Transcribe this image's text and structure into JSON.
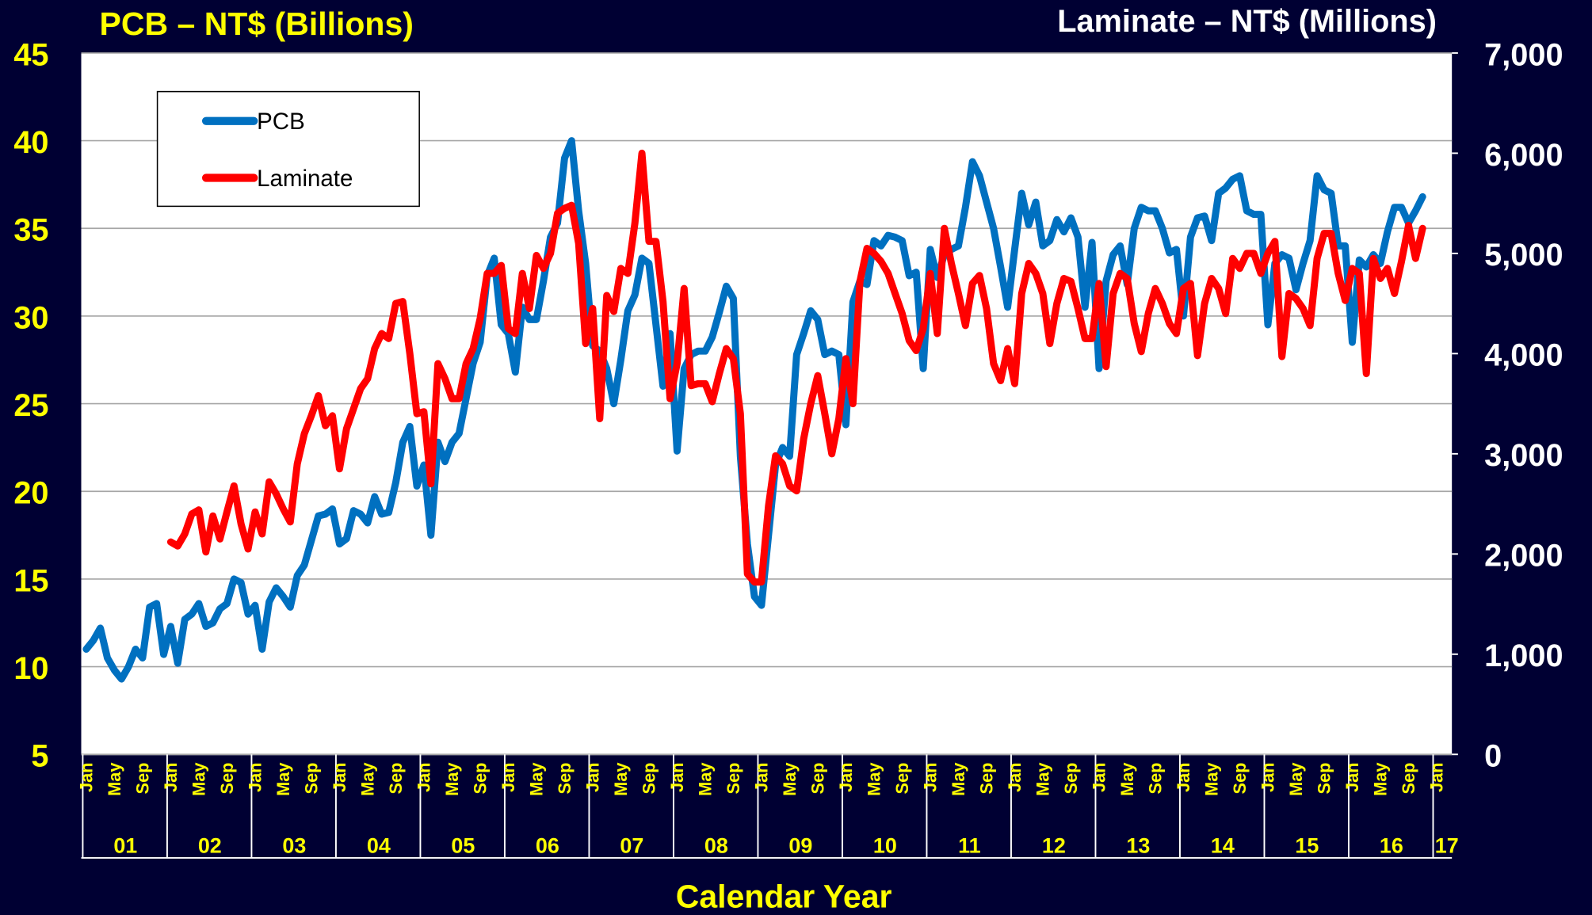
{
  "chart_data": {
    "type": "line",
    "title": "PCB – NT$ (Billions)",
    "title_right": "Laminate – NT$ (Millions)",
    "xlabel": "Calendar Year",
    "categories": [
      "Jan",
      null,
      null,
      null,
      "May",
      null,
      null,
      null,
      "Sep",
      null,
      null,
      null,
      "Jan",
      null,
      null,
      null,
      "May",
      null,
      null,
      null,
      "Sep",
      null,
      null,
      null,
      "Jan",
      null,
      null,
      null,
      "May",
      null,
      null,
      null,
      "Sep",
      null,
      null,
      null,
      "Jan",
      null,
      null,
      null,
      "May",
      null,
      null,
      null,
      "Sep",
      null,
      null,
      null,
      "Jan",
      null,
      null,
      null,
      "May",
      null,
      null,
      null,
      "Sep",
      null,
      null,
      null,
      "Jan",
      null,
      null,
      null,
      "May",
      null,
      null,
      null,
      "Sep",
      null,
      null,
      null,
      "Jan",
      null,
      null,
      null,
      "May",
      null,
      null,
      null,
      "Sep",
      null,
      null,
      null,
      "Jan",
      null,
      null,
      null,
      "May",
      null,
      null,
      null,
      "Sep",
      null,
      null,
      null,
      "Jan",
      null,
      null,
      null,
      "May",
      null,
      null,
      null,
      "Sep",
      null,
      null,
      null,
      "Jan",
      null,
      null,
      null,
      "May",
      null,
      null,
      null,
      "Sep",
      null,
      null,
      null,
      "Jan",
      null,
      null,
      null,
      "May",
      null,
      null,
      null,
      "Sep",
      null,
      null,
      null,
      "Jan",
      null,
      null,
      null,
      "May",
      null,
      null,
      null,
      "Sep",
      null,
      null,
      null,
      "Jan",
      null,
      null,
      null,
      "May",
      null,
      null,
      null,
      "Sep",
      null,
      null,
      null,
      "Jan",
      null,
      null,
      null,
      "May",
      null,
      null,
      null,
      "Sep",
      null,
      null,
      null,
      "Jan",
      null,
      null,
      null,
      "May",
      null,
      null,
      null,
      "Sep",
      null,
      null,
      null,
      "Jan",
      null,
      null,
      null,
      "May",
      null,
      null,
      null,
      "Sep",
      null,
      null,
      null,
      "Jan"
    ],
    "year_labels": [
      "01",
      "02",
      "03",
      "04",
      "05",
      "06",
      "07",
      "08",
      "09",
      "10",
      "11",
      "12",
      "13",
      "14",
      "15",
      "16",
      "17"
    ],
    "series": [
      {
        "name": "PCB",
        "color": "#0070c0",
        "values": [
          11,
          11.5,
          12.2,
          10.5,
          9.8,
          9.3,
          10,
          11,
          10.5,
          13.4,
          13.6,
          10.7,
          12.3,
          10.2,
          12.7,
          13,
          13.6,
          12.3,
          12.5,
          13.3,
          13.6,
          15,
          14.8,
          13,
          13.5,
          11,
          13.7,
          14.5,
          14,
          13.4,
          15.2,
          15.8,
          17.2,
          18.6,
          18.7,
          19,
          17,
          17.3,
          18.9,
          18.7,
          18.2,
          19.7,
          18.7,
          18.8,
          20.5,
          22.8,
          23.7,
          20.3,
          21.5,
          17.5,
          22.8,
          21.7,
          22.8,
          23.3,
          25.3,
          27.3,
          28.5,
          32.3,
          33.3,
          29.5,
          29,
          26.8,
          30.5,
          29.8,
          29.8,
          32,
          34.5,
          35.3,
          39,
          40,
          36,
          33,
          28.3,
          28,
          27,
          25,
          27.5,
          30.3,
          31.2,
          33.3,
          33,
          29.5,
          26,
          29,
          22.3,
          27,
          27.8,
          28,
          28,
          28.8,
          30.2,
          31.7,
          31,
          22,
          17,
          14,
          13.5,
          17.5,
          21.5,
          22.5,
          22,
          27.8,
          29,
          30.3,
          29.8,
          27.8,
          28,
          27.8,
          23.8,
          30.8,
          32,
          31.8,
          34.3,
          34,
          34.6,
          34.5,
          34.3,
          32.3,
          32.5,
          27,
          33.8,
          32.2,
          33.5,
          33.8,
          34,
          36.2,
          38.8,
          38,
          36.5,
          35,
          32.8,
          30.5,
          33.8,
          37,
          35.2,
          36.5,
          34,
          34.3,
          35.5,
          34.8,
          35.6,
          34.5,
          30.5,
          34.2,
          27,
          32,
          33.5,
          34,
          31.8,
          35,
          36.2,
          36,
          36,
          35,
          33.6,
          33.8,
          30,
          34.5,
          35.6,
          35.7,
          34.3,
          37,
          37.3,
          37.8,
          38,
          36,
          35.8,
          35.8,
          29.5,
          33,
          33.5,
          33.3,
          31.5,
          33,
          34.3,
          38,
          37.2,
          37,
          34,
          34,
          28.5,
          33.2,
          32.8,
          33.5,
          33,
          34.8,
          36.2,
          36.2,
          35.3,
          36,
          36.8,
          null,
          null
        ]
      },
      {
        "name": "Laminate",
        "color": "#ff0000",
        "axis": "y2",
        "values": [
          null,
          null,
          null,
          null,
          null,
          null,
          null,
          null,
          null,
          null,
          null,
          null,
          2120,
          2080,
          2200,
          2400,
          2440,
          2020,
          2380,
          2150,
          2420,
          2680,
          2300,
          2050,
          2420,
          2200,
          2720,
          2600,
          2450,
          2320,
          2900,
          3200,
          3380,
          3580,
          3280,
          3380,
          2850,
          3250,
          3450,
          3650,
          3750,
          4050,
          4200,
          4150,
          4500,
          4520,
          4000,
          3400,
          3420,
          2700,
          3900,
          3750,
          3550,
          3550,
          3900,
          4050,
          4350,
          4800,
          4800,
          4880,
          4250,
          4200,
          4800,
          4450,
          4980,
          4850,
          5000,
          5400,
          5450,
          5480,
          5100,
          4100,
          4450,
          3350,
          4580,
          4420,
          4850,
          4800,
          5300,
          6000,
          5120,
          5120,
          4520,
          3550,
          3900,
          4650,
          3680,
          3700,
          3700,
          3520,
          3800,
          4050,
          3950,
          3400,
          1800,
          1720,
          1720,
          2480,
          2980,
          2900,
          2680,
          2630,
          3150,
          3500,
          3780,
          3400,
          3000,
          3350,
          3950,
          3500,
          4720,
          5050,
          5000,
          4920,
          4800,
          4600,
          4400,
          4130,
          4030,
          4250,
          4800,
          4200,
          5250,
          4900,
          4600,
          4280,
          4700,
          4780,
          4450,
          3900,
          3730,
          4050,
          3700,
          4600,
          4900,
          4800,
          4600,
          4100,
          4500,
          4750,
          4720,
          4450,
          4150,
          4150,
          4700,
          3870,
          4600,
          4800,
          4750,
          4300,
          4020,
          4400,
          4650,
          4500,
          4300,
          4200,
          4650,
          4700,
          3980,
          4500,
          4750,
          4650,
          4400,
          4950,
          4850,
          5000,
          5000,
          4800,
          5000,
          5120,
          3970,
          4600,
          4550,
          4450,
          4280,
          4950,
          5200,
          5200,
          4800,
          4530,
          4850,
          4800,
          3800,
          4950,
          4750,
          4850,
          4600,
          4920,
          5280,
          4950,
          5250,
          null,
          null
        ]
      }
    ],
    "ylim": [
      5,
      45
    ],
    "yticks": [
      5,
      10,
      15,
      20,
      25,
      30,
      35,
      40,
      45
    ],
    "y2lim": [
      0,
      7000
    ],
    "y2ticks": [
      0,
      {
        "value": 1000,
        "label": "1,000"
      },
      {
        "value": 2000,
        "label": "2,000"
      },
      {
        "value": 3000,
        "label": "3,000"
      },
      {
        "value": 4000,
        "label": "4,000"
      },
      {
        "value": 5000,
        "label": "5,000"
      },
      {
        "value": 6000,
        "label": "6,000"
      },
      {
        "value": 7000,
        "label": "7,000"
      }
    ],
    "grid": true,
    "legend": "upper left"
  }
}
